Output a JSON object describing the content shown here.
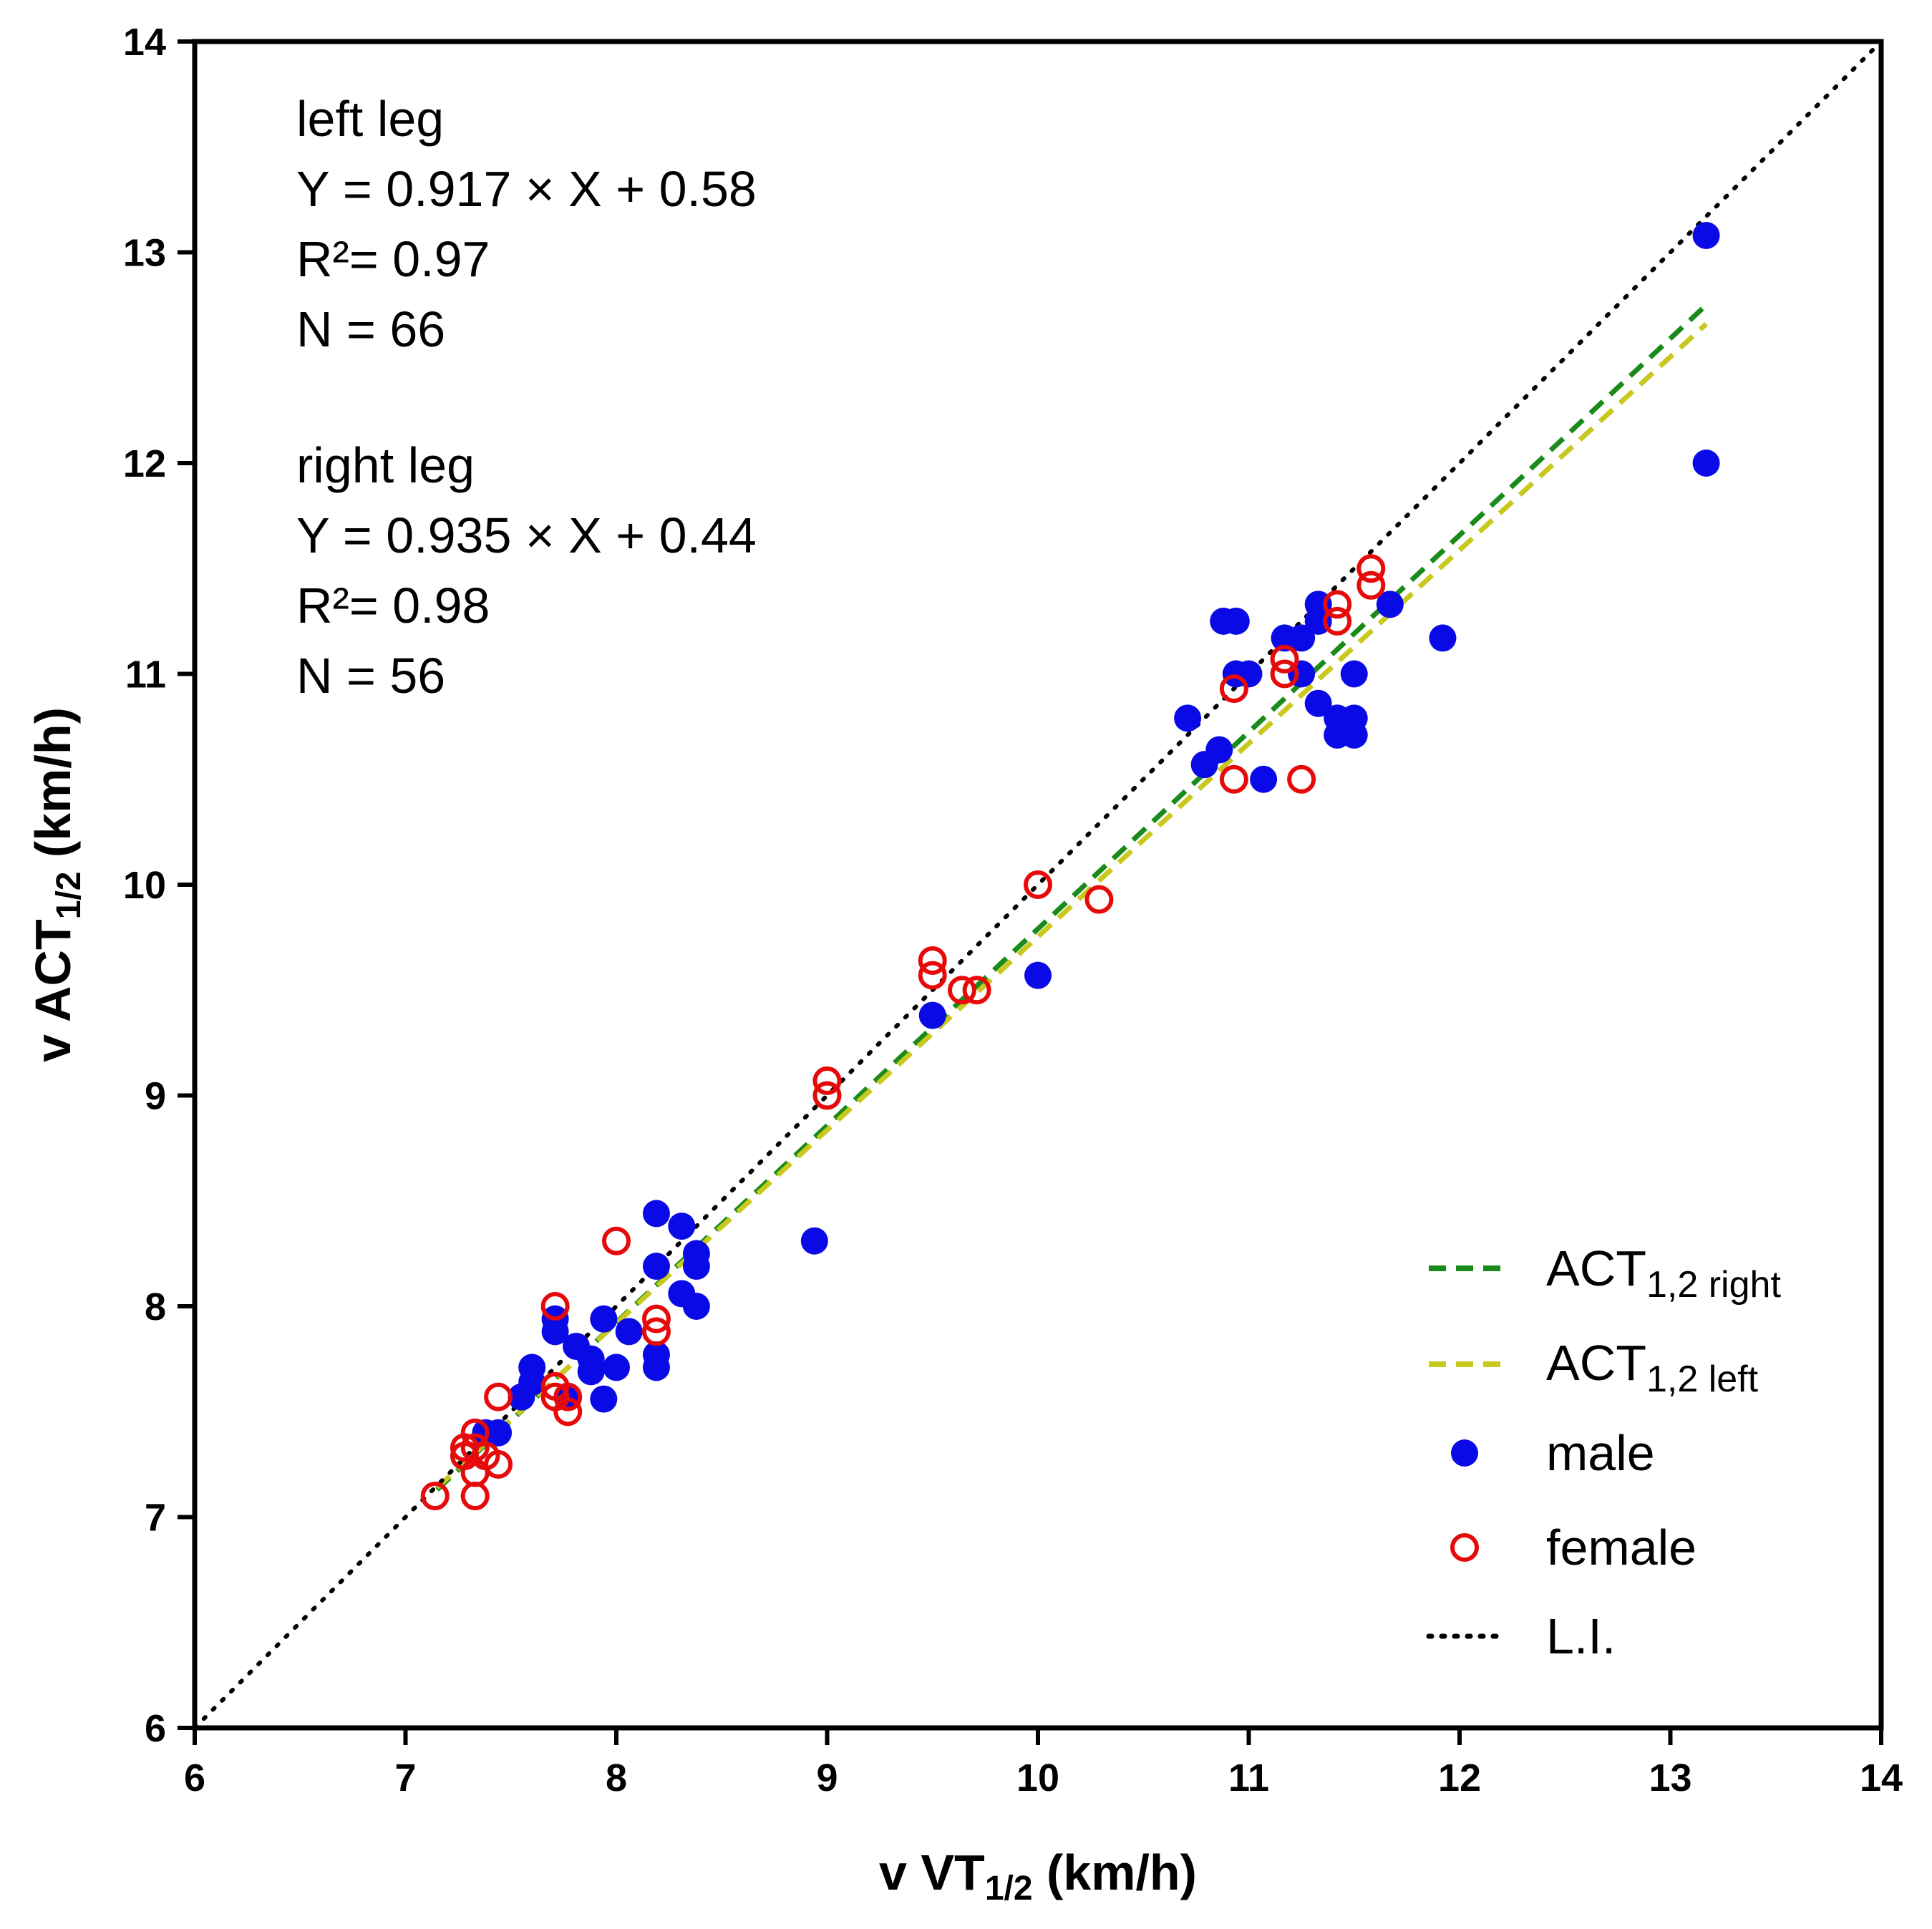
{
  "chart_data": {
    "type": "scatter",
    "xlabel": {
      "main": "v VT",
      "sub": "1/2",
      "unit": " (km/h)"
    },
    "ylabel": {
      "main": "v ACT",
      "sub": "1/2",
      "unit": " (km/h)"
    },
    "xlim": [
      6,
      14
    ],
    "ylim": [
      6,
      14
    ],
    "xticks": [
      "6",
      "7",
      "8",
      "9",
      "10",
      "11",
      "12",
      "13",
      "14"
    ],
    "yticks": [
      "6",
      "7",
      "8",
      "9",
      "10",
      "11",
      "12",
      "13",
      "14"
    ],
    "grid": false,
    "annotations": {
      "left": {
        "title": "left leg",
        "equation": "Y = 0.917 × X + 0.58",
        "r2": "R²= 0.97",
        "n": "N = 66"
      },
      "right": {
        "title": "right leg",
        "equation": "Y = 0.935 × X + 0.44",
        "r2": "R²= 0.98",
        "n": "N = 56"
      }
    },
    "legend": {
      "position": "bottom-right",
      "entries": [
        {
          "key": "act_right",
          "label": "ACT",
          "sub": "1,2 right"
        },
        {
          "key": "act_left",
          "label": "ACT",
          "sub": "1,2 left"
        },
        {
          "key": "male",
          "label": "male",
          "sub": ""
        },
        {
          "key": "female",
          "label": "female",
          "sub": ""
        },
        {
          "key": "li",
          "label": "L.I.",
          "sub": ""
        }
      ]
    },
    "colors": {
      "male": "#0a0ae6",
      "female": "#e60a0a",
      "act_right": "#1a8a1a",
      "act_left": "#c8c81e",
      "li": "#000000"
    },
    "lines": [
      {
        "key": "act_right",
        "x": [
          7.15,
          13.17
        ],
        "y": [
          7.13,
          12.75
        ]
      },
      {
        "key": "act_left",
        "x": [
          7.15,
          13.17
        ],
        "y": [
          7.14,
          12.66
        ]
      },
      {
        "key": "li",
        "x": [
          6,
          14
        ],
        "y": [
          6,
          14
        ]
      }
    ],
    "series": [
      {
        "name": "male",
        "points": [
          [
            13.17,
            13.08
          ],
          [
            13.17,
            12.0
          ],
          [
            11.67,
            11.33
          ],
          [
            11.92,
            11.17
          ],
          [
            11.33,
            11.33
          ],
          [
            11.33,
            11.25
          ],
          [
            11.25,
            11.17
          ],
          [
            11.17,
            11.17
          ],
          [
            10.88,
            11.25
          ],
          [
            10.94,
            11.25
          ],
          [
            10.94,
            11.0
          ],
          [
            11.0,
            11.0
          ],
          [
            11.25,
            11.0
          ],
          [
            11.5,
            11.0
          ],
          [
            11.33,
            10.86
          ],
          [
            11.42,
            10.79
          ],
          [
            11.5,
            10.79
          ],
          [
            11.42,
            10.71
          ],
          [
            11.5,
            10.71
          ],
          [
            10.71,
            10.79
          ],
          [
            10.86,
            10.64
          ],
          [
            10.79,
            10.57
          ],
          [
            11.07,
            10.5
          ],
          [
            10.0,
            9.57
          ],
          [
            9.5,
            9.38
          ],
          [
            8.94,
            8.31
          ],
          [
            8.19,
            8.44
          ],
          [
            8.31,
            8.38
          ],
          [
            8.38,
            8.25
          ],
          [
            8.19,
            8.19
          ],
          [
            8.38,
            8.19
          ],
          [
            8.31,
            8.06
          ],
          [
            8.38,
            8.0
          ],
          [
            7.94,
            7.94
          ],
          [
            8.06,
            7.88
          ],
          [
            7.71,
            7.94
          ],
          [
            7.71,
            7.88
          ],
          [
            7.81,
            7.81
          ],
          [
            7.88,
            7.75
          ],
          [
            8.0,
            7.71
          ],
          [
            8.19,
            7.77
          ],
          [
            8.19,
            7.71
          ],
          [
            7.88,
            7.69
          ],
          [
            7.6,
            7.71
          ],
          [
            7.6,
            7.64
          ],
          [
            7.55,
            7.57
          ],
          [
            7.77,
            7.57
          ],
          [
            7.94,
            7.56
          ],
          [
            7.44,
            7.4
          ],
          [
            7.38,
            7.4
          ]
        ]
      },
      {
        "name": "female",
        "points": [
          [
            11.58,
            11.5
          ],
          [
            11.58,
            11.42
          ],
          [
            11.42,
            11.33
          ],
          [
            11.42,
            11.25
          ],
          [
            11.17,
            11.07
          ],
          [
            11.17,
            11.0
          ],
          [
            10.93,
            10.93
          ],
          [
            10.93,
            10.5
          ],
          [
            11.25,
            10.5
          ],
          [
            10.0,
            10.0
          ],
          [
            10.29,
            9.93
          ],
          [
            9.5,
            9.64
          ],
          [
            9.5,
            9.57
          ],
          [
            9.64,
            9.5
          ],
          [
            9.71,
            9.5
          ],
          [
            9.0,
            9.07
          ],
          [
            9.0,
            9.0
          ],
          [
            8.0,
            8.31
          ],
          [
            8.19,
            7.94
          ],
          [
            8.19,
            7.88
          ],
          [
            7.71,
            8.0
          ],
          [
            7.71,
            7.62
          ],
          [
            7.71,
            7.57
          ],
          [
            7.77,
            7.57
          ],
          [
            7.77,
            7.5
          ],
          [
            7.44,
            7.57
          ],
          [
            7.33,
            7.4
          ],
          [
            7.28,
            7.33
          ],
          [
            7.33,
            7.33
          ],
          [
            7.28,
            7.29
          ],
          [
            7.38,
            7.29
          ],
          [
            7.33,
            7.21
          ],
          [
            7.44,
            7.25
          ],
          [
            7.14,
            7.1
          ],
          [
            7.33,
            7.1
          ]
        ]
      }
    ]
  }
}
